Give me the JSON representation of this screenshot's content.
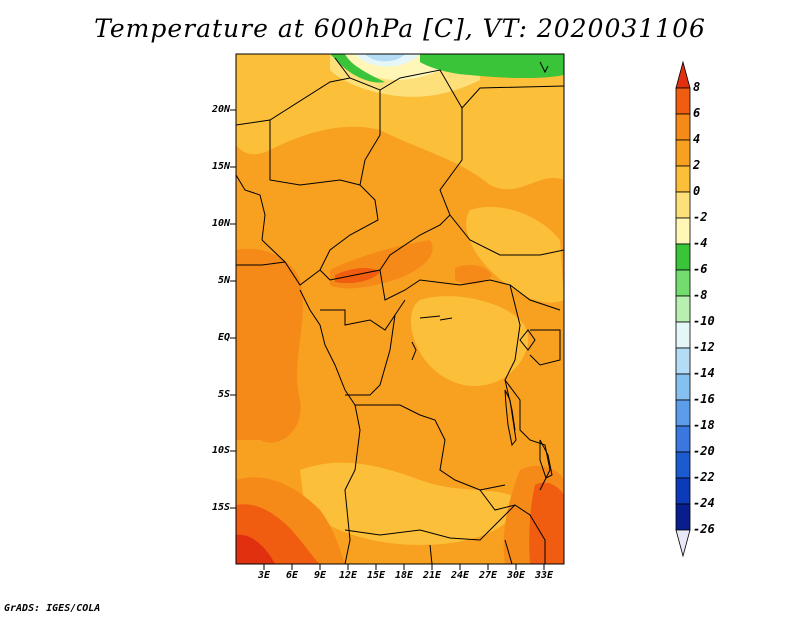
{
  "title": "Temperature at 600hPa [C], VT: 2020031106",
  "credit": "GrADS: IGES/COLA",
  "lat_labels": [
    "20N",
    "15N",
    "10N",
    "5N",
    "EQ",
    "5S",
    "10S",
    "15S"
  ],
  "lon_labels": [
    "3E",
    "6E",
    "9E",
    "12E",
    "15E",
    "18E",
    "21E",
    "24E",
    "27E",
    "30E",
    "33E"
  ],
  "colorbar": {
    "labels": [
      "8",
      "6",
      "4",
      "2",
      "0",
      "-2",
      "-4",
      "-6",
      "-8",
      "-10",
      "-12",
      "-14",
      "-16",
      "-18",
      "-20",
      "-22",
      "-24",
      "-26"
    ],
    "colors": [
      "#e03010",
      "#f05c10",
      "#f58a18",
      "#f8a020",
      "#fbbf3a",
      "#fde07a",
      "#fff6b8",
      "#39c43a",
      "#73dc6e",
      "#b8f0b0",
      "#e4f6f8",
      "#b5dcf6",
      "#86c0f0",
      "#5c9ce8",
      "#3a78e0",
      "#1c5ad0",
      "#0c3ab8",
      "#081e8c",
      "#000a5a"
    ]
  },
  "map": {
    "region": "Central & Southern Africa",
    "variable": "Temperature",
    "units": "C",
    "level": "600hPa",
    "valid_time": "2020031106"
  }
}
